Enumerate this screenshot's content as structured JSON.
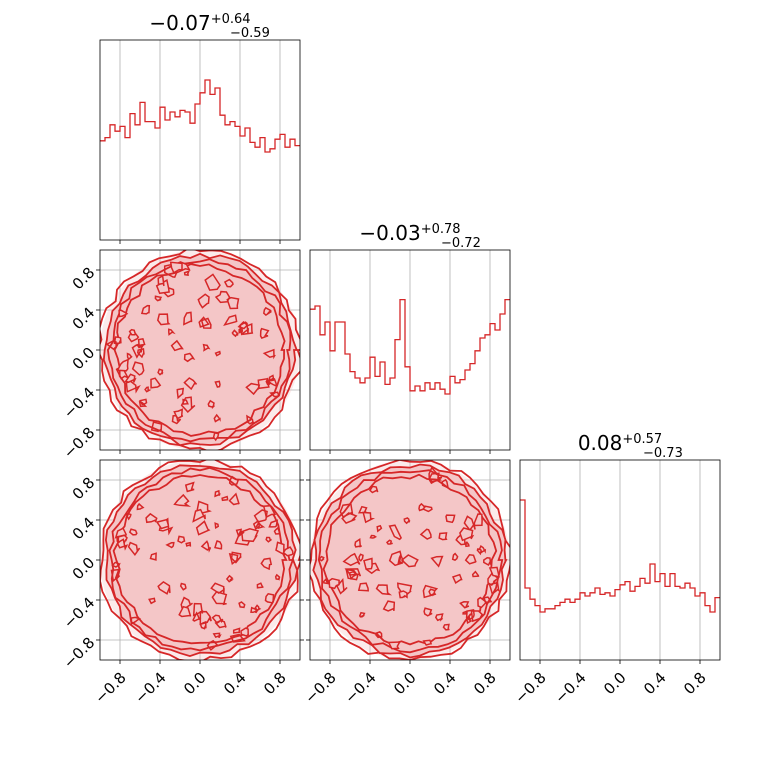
{
  "colors": {
    "line": "#d62728",
    "fill": "#f4c6c7",
    "grid": "#b0b0b0"
  },
  "chart_data": {
    "type": "corner",
    "parameter_range": [
      -1.0,
      1.0
    ],
    "tick_labels": [
      "-0.8",
      "-0.4",
      "0.0",
      "0.4",
      "0.8"
    ],
    "tick_values": [
      -0.8,
      -0.4,
      0.0,
      0.4,
      0.8
    ],
    "grid": true,
    "histograms": [
      {
        "summary": {
          "median": "−0.07",
          "plus": "+0.64",
          "minus": "−0.59"
        },
        "bins": 40,
        "values": [
          0.62,
          0.64,
          0.72,
          0.68,
          0.71,
          0.64,
          0.79,
          0.72,
          0.86,
          0.74,
          0.74,
          0.7,
          0.83,
          0.75,
          0.8,
          0.77,
          0.81,
          0.8,
          0.73,
          0.85,
          0.92,
          1.0,
          0.91,
          0.95,
          0.78,
          0.72,
          0.74,
          0.71,
          0.65,
          0.7,
          0.61,
          0.58,
          0.64,
          0.55,
          0.57,
          0.63,
          0.66,
          0.58,
          0.63,
          0.59
        ]
      },
      {
        "summary": {
          "median": "−0.03",
          "plus": "+0.78",
          "minus": "−0.72"
        },
        "bins": 40,
        "values": [
          0.88,
          0.9,
          0.72,
          0.8,
          0.62,
          0.8,
          0.8,
          0.6,
          0.49,
          0.45,
          0.42,
          0.45,
          0.58,
          0.46,
          0.55,
          0.41,
          0.45,
          0.69,
          0.94,
          0.52,
          0.37,
          0.4,
          0.37,
          0.42,
          0.38,
          0.42,
          0.38,
          0.35,
          0.46,
          0.42,
          0.44,
          0.5,
          0.54,
          0.62,
          0.7,
          0.72,
          0.79,
          0.75,
          0.85,
          0.94
        ]
      },
      {
        "summary": {
          "median": "0.08",
          "plus": "+0.57",
          "minus": "−0.73"
        },
        "bins": 40,
        "values": [
          1.0,
          0.45,
          0.38,
          0.34,
          0.3,
          0.32,
          0.32,
          0.34,
          0.36,
          0.38,
          0.36,
          0.38,
          0.42,
          0.4,
          0.42,
          0.45,
          0.41,
          0.42,
          0.4,
          0.44,
          0.47,
          0.49,
          0.43,
          0.46,
          0.51,
          0.48,
          0.6,
          0.49,
          0.54,
          0.46,
          0.54,
          0.46,
          0.45,
          0.48,
          0.45,
          0.4,
          0.42,
          0.34,
          0.3,
          0.39
        ]
      }
    ],
    "contour_pairs": [
      {
        "x_param": 1,
        "y_param": 2,
        "support": "unit-disk"
      },
      {
        "x_param": 1,
        "y_param": 3,
        "support": "unit-disk"
      },
      {
        "x_param": 2,
        "y_param": 3,
        "support": "unit-disk"
      }
    ]
  }
}
